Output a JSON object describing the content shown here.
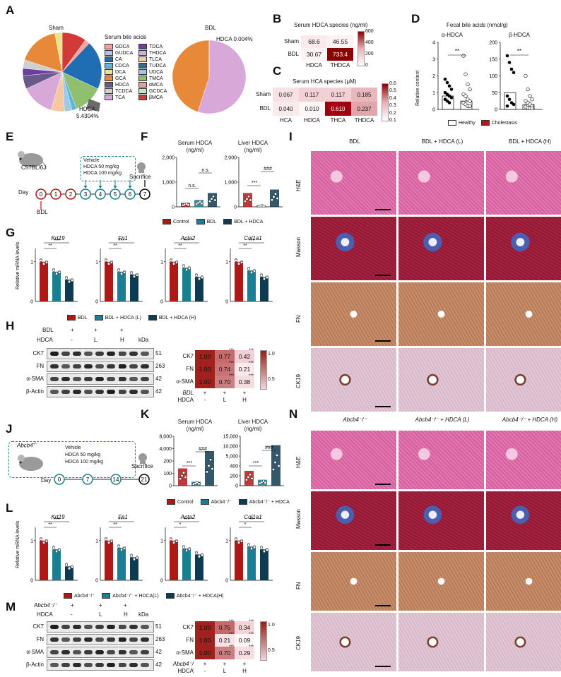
{
  "panels": {
    "A": {
      "letter": "A",
      "sham_title": "Sham",
      "bdl_title": "BDL",
      "legend_title": "Serum bile acids",
      "legend_col1": [
        {
          "label": "GDCA",
          "color": "#f4a3a0"
        },
        {
          "label": "GUDCA",
          "color": "#b0c4de"
        },
        {
          "label": "CA",
          "color": "#1f6eb4"
        },
        {
          "label": "CDCA",
          "color": "#5bb8d8"
        },
        {
          "label": "DCA",
          "color": "#ede48a"
        },
        {
          "label": "GCA",
          "color": "#e8893a"
        },
        {
          "label": "HDCA",
          "color": "#6a5a8a"
        },
        {
          "label": "TCDCA",
          "color": "#cfcfcf"
        },
        {
          "label": "TCA",
          "color": "#d8a8d8"
        }
      ],
      "legend_col2": [
        {
          "label": "TDCA",
          "color": "#6b3fa0"
        },
        {
          "label": "THDCA",
          "color": "#c6b4de"
        },
        {
          "label": "TLCA",
          "color": "#f6c8a0"
        },
        {
          "label": "TUDCA",
          "color": "#2e6e8e"
        },
        {
          "label": "UDCA",
          "color": "#a0c8e8"
        },
        {
          "label": "TMCA",
          "color": "#8fbf6f"
        },
        {
          "label": "αMCA",
          "color": "#e0a0a0"
        },
        {
          "label": "GCDCA",
          "color": "#c8e0c0"
        },
        {
          "label": "βMCA",
          "color": "#d23a3a"
        }
      ],
      "sham_annot_label": "HDCA",
      "sham_annot_value": "5.4304%",
      "bdl_annot": "HDCA  0.004%"
    },
    "B": {
      "letter": "B",
      "title": "Serum HDCA species (ng/ml)",
      "rows": [
        "Sham",
        "BDL"
      ],
      "cols": [
        "HDCA",
        "THDCA"
      ],
      "values": [
        [
          "68.6",
          "46.55"
        ],
        [
          "30.67",
          "733.4"
        ]
      ],
      "colors": [
        [
          "#fbe9ec",
          "#fdf2f3"
        ],
        [
          "#fdf3f4",
          "#8b0000"
        ]
      ],
      "scale": [
        "600",
        "400",
        "200",
        "0"
      ]
    },
    "C": {
      "letter": "C",
      "title": "Serum HCA species (μM)",
      "rows": [
        "Sham",
        "BDL"
      ],
      "cols": [
        "HCA",
        "HDCA",
        "THCA",
        "THDCA"
      ],
      "values": [
        [
          "0.067",
          "0.117",
          "0.117",
          "0.185"
        ],
        [
          "0.040",
          "0.010",
          "0.610",
          "0.237"
        ]
      ],
      "colors": [
        [
          "#f7e1e3",
          "#f1d1d5",
          "#f1d1d5",
          "#e8b8bc"
        ],
        [
          "#faeaeb",
          "#fdf6f6",
          "#a00012",
          "#e0a6ab"
        ]
      ],
      "scale": [
        "0.6",
        "0.5",
        "0.4",
        "0.3",
        "0.2",
        "0.1"
      ]
    },
    "D": {
      "letter": "D",
      "title": "Fecal bile acids (nmol/g)",
      "sub1": "α-HDCA",
      "sub2": "β-HDCA",
      "ylabel": "Relative content",
      "y1_ticks": [
        "4",
        "3",
        "2",
        "1",
        "0"
      ],
      "y2_ticks": [
        "200",
        "150",
        "100",
        "50",
        "0"
      ],
      "sig": "**",
      "legend": [
        {
          "label": "Healthy",
          "color": "#ffffff"
        },
        {
          "label": "Cholestasis",
          "color": "#b01818"
        }
      ]
    },
    "E": {
      "letter": "E",
      "strain": "C57BL/6J",
      "box_lines": [
        "Vehicle",
        "HDCA 50 mg/kg",
        "HDCA 100 mg/kg"
      ],
      "day_label": "Day",
      "days": [
        "0",
        "1",
        "2",
        "3",
        "4",
        "5",
        "6",
        "7"
      ],
      "bdl_label": "BDL",
      "sacrifice": "Sacrifice"
    },
    "F": {
      "letter": "F",
      "chart1_title": "Serum HDCA",
      "chart1_unit": "(ng/ml)",
      "chart2_title": "Liver HDCA",
      "chart2_unit": "(ng/ml)",
      "y1_ticks": [
        "2,000",
        "1,000",
        "0"
      ],
      "y2_ticks": [
        "2,000",
        "1,000",
        "0"
      ],
      "sig1": [
        "n.s.",
        "n.s."
      ],
      "sig2": [
        "***",
        "###"
      ],
      "legend": [
        {
          "label": "Control",
          "color": "#b01818"
        },
        {
          "label": "BDL",
          "color": "#1a7f93"
        },
        {
          "label": "BDL + HDCA",
          "color": "#0f3b52"
        }
      ]
    },
    "G": {
      "letter": "G",
      "ylabel": "Relative mRNA levels",
      "genes": [
        "Krt19",
        "Fn1",
        "Acta2",
        "Col1a1"
      ],
      "sigs": [
        [
          "**",
          "***"
        ],
        [
          "**",
          "***"
        ],
        [
          "**",
          "***"
        ],
        [
          "**",
          "***"
        ]
      ],
      "tick_one": "1",
      "tick_zero": "0",
      "legend": [
        {
          "label": "BDL",
          "color": "#b01818"
        },
        {
          "label": "BDL + HDCA (L)",
          "color": "#1a7f93"
        },
        {
          "label": "BDL + HDCA (H)",
          "color": "#0f3b52"
        }
      ]
    },
    "H": {
      "letter": "H",
      "row1_label": "BDL",
      "row1_vals": [
        "+",
        "+",
        "+"
      ],
      "row2_label": "HDCA",
      "row2_vals": [
        "-",
        "L",
        "H"
      ],
      "kda": "kDa",
      "blots": [
        {
          "label": "CK7",
          "kda": "51"
        },
        {
          "label": "FN",
          "kda": "263"
        },
        {
          "label": "α-SMA",
          "kda": "42"
        },
        {
          "label": "β-Actin",
          "kda": "42"
        }
      ],
      "hm_rows": [
        "CK7",
        "FN",
        "α-SMA"
      ],
      "hm_values": [
        [
          "1.00",
          "0.77",
          "0.42"
        ],
        [
          "1.00",
          "0.74",
          "0.21"
        ],
        [
          "1.00",
          "0.70",
          "0.38"
        ]
      ],
      "hm_colors": [
        [
          "#a0211e",
          "#c66a6c",
          "#f1d1d5"
        ],
        [
          "#a0211e",
          "#c87375",
          "#fbeaec"
        ],
        [
          "#a0211e",
          "#cc7d80",
          "#f5dce0"
        ]
      ],
      "hm_sig": "***",
      "hm_foot1_label": "BDL",
      "hm_foot1_vals": [
        "+",
        "+",
        "+"
      ],
      "hm_foot2_label": "HDCA",
      "hm_foot2_vals": [
        "-",
        "L",
        "H"
      ],
      "scale": [
        "1.0",
        "0.5"
      ]
    },
    "I": {
      "letter": "I",
      "cols": [
        "BDL",
        "BDL + HDCA (L)",
        "BDL + HDCA (H)"
      ],
      "rows": [
        "H&E",
        "Masson",
        "FN",
        "CK19"
      ]
    },
    "J": {
      "letter": "J",
      "strain": "Abcb4",
      "strain_sup": "-/-",
      "box_lines": [
        "Vehicle",
        "HDCA 50 mg/kg",
        "HDCA 100 mg/kg"
      ],
      "day_label": "Day",
      "days": [
        "0",
        "7",
        "14",
        "21"
      ],
      "sacrifice": "Sacrifice"
    },
    "K": {
      "letter": "K",
      "chart1_title": "Serum HDCA",
      "chart1_unit": "(ng/ml)",
      "chart2_title": "Liver HDCA",
      "chart2_unit": "(ng/ml)",
      "y1_ticks": [
        "8,000",
        "4,000",
        "200",
        "100",
        "0"
      ],
      "y2_ticks": [
        "15,000",
        "10,000",
        "5,000",
        "400",
        "200",
        "0"
      ],
      "sig1": [
        "***",
        "###"
      ],
      "sig2": [
        "***",
        "###"
      ],
      "legend": [
        {
          "label": "Control",
          "color": "#b01818"
        },
        {
          "label": "Abcb4⁻/⁻",
          "color": "#1a7f93"
        },
        {
          "label": "Abcb4⁻/⁻ + HDCA",
          "color": "#0f3b52"
        }
      ]
    },
    "L": {
      "letter": "L",
      "ylabel": "Relative mRNA levels",
      "genes": [
        "Krt19",
        "Fn1",
        "Acta2",
        "Col1a1"
      ],
      "sigs": [
        [
          "**",
          "***"
        ],
        [
          "**",
          "***"
        ],
        [
          "*",
          "***"
        ],
        [
          "*",
          "**"
        ]
      ],
      "tick_one": "1",
      "tick_zero": "0",
      "legend": [
        {
          "label": "Abcb4⁻/⁻",
          "color": "#b01818"
        },
        {
          "label": "Abcb4⁻/⁻ + HDCA(L)",
          "color": "#1a7f93"
        },
        {
          "label": "Abcb4⁻/⁻ + HDCA(H)",
          "color": "#0f3b52"
        }
      ]
    },
    "M": {
      "letter": "M",
      "row1_label": "Abcb4⁻/⁻",
      "row1_vals": [
        "+",
        "+",
        "+"
      ],
      "row2_label": "HDCA",
      "row2_vals": [
        "-",
        "L",
        "H"
      ],
      "kda": "kDa",
      "blots": [
        {
          "label": "CK7",
          "kda": "51"
        },
        {
          "label": "FN",
          "kda": "263"
        },
        {
          "label": "α-SMA",
          "kda": "42"
        },
        {
          "label": "β-Actin",
          "kda": "42"
        }
      ],
      "hm_rows": [
        "CK7",
        "FN",
        "α-SMA"
      ],
      "hm_values": [
        [
          "1.00",
          "0.75",
          "0.34"
        ],
        [
          "1.00",
          "0.21",
          "0.09"
        ],
        [
          "1.00",
          "0.70",
          "0.29"
        ]
      ],
      "hm_colors": [
        [
          "#a0211e",
          "#c5696b",
          "#f3d5d9"
        ],
        [
          "#a0211e",
          "#f8e2e5",
          "#fdf5f6"
        ],
        [
          "#a0211e",
          "#cc7d80",
          "#f6dde1"
        ]
      ],
      "hm_sig": "***",
      "hm_foot1_label": "Abcb4⁻/⁻",
      "hm_foot1_vals": [
        "+",
        "+",
        "+"
      ],
      "hm_foot2_label": "HDCA",
      "hm_foot2_vals": [
        "-",
        "L",
        "H"
      ],
      "scale": [
        "1.0",
        "0.5"
      ]
    },
    "N": {
      "letter": "N",
      "cols": [
        "Abcb4⁻/⁻",
        "Abcb4⁻/⁻ + HDCA (L)",
        "Abcb4⁻/⁻ + HDCA (H)"
      ],
      "rows": [
        "H&E",
        "Masson",
        "FN",
        "CK19"
      ]
    }
  },
  "chart_data": [
    {
      "type": "pie",
      "title": "Sham",
      "categories": [
        "βMCA",
        "GDCA",
        "CA",
        "TMCA",
        "CDCA",
        "UDCA",
        "TLCA",
        "TCA",
        "HDCA",
        "TDCA",
        "TCDCA",
        "GCA",
        "DCA"
      ],
      "values": [
        10.0,
        2.0,
        20.0,
        12.0,
        2.0,
        3.0,
        5.5,
        13.5,
        5.43,
        3.0,
        3.5,
        17.0,
        3.0
      ]
    },
    {
      "type": "pie",
      "title": "BDL",
      "categories": [
        "TCA",
        "GCA",
        "HDCA"
      ],
      "values": [
        55.0,
        44.996,
        0.004
      ]
    }
  ]
}
